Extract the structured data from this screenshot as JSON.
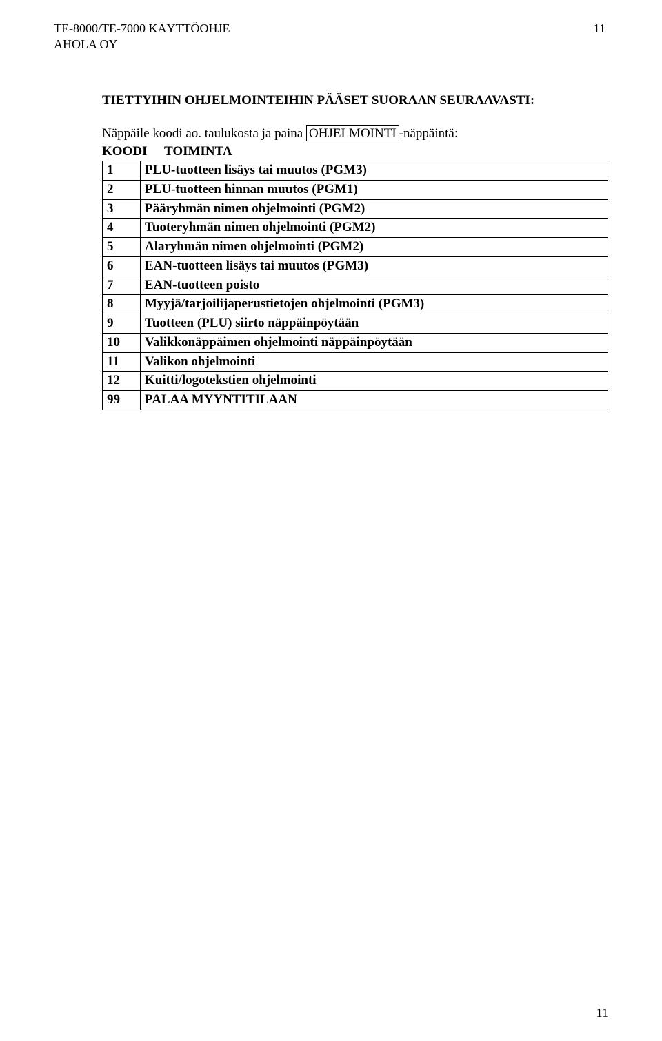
{
  "header": {
    "title_line1": "TE-8000/TE-7000 KÄYTTÖOHJE",
    "title_line2": "AHOLA OY",
    "page_top": "11"
  },
  "section": {
    "heading": "TIETTYIHIN OHJELMOINTEIHIN PÄÄSET SUORAAN SEURAAVASTI:",
    "intro_prefix": "Näppäile koodi ao. taulukosta ja paina ",
    "intro_boxed": "OHJELMOINTI",
    "intro_suffix": "-näppäintä:"
  },
  "table": {
    "head_code": "KOODI",
    "head_action": "TOIMINTA",
    "rows": [
      {
        "code": "1",
        "action": "PLU-tuotteen lisäys tai muutos (PGM3)"
      },
      {
        "code": "2",
        "action": "PLU-tuotteen hinnan muutos (PGM1)"
      },
      {
        "code": "3",
        "action": "Pääryhmän nimen ohjelmointi (PGM2)"
      },
      {
        "code": "4",
        "action": "Tuoteryhmän nimen ohjelmointi (PGM2)"
      },
      {
        "code": "5",
        "action": "Alaryhmän nimen ohjelmointi (PGM2)"
      },
      {
        "code": "6",
        "action": "EAN-tuotteen lisäys tai muutos (PGM3)"
      },
      {
        "code": "7",
        "action": "EAN-tuotteen poisto"
      },
      {
        "code": "8",
        "action": "Myyjä/tarjoilijaperustietojen ohjelmointi (PGM3)"
      },
      {
        "code": "9",
        "action": "Tuotteen (PLU) siirto näppäinpöytään"
      },
      {
        "code": "10",
        "action": "Valikkonäppäimen ohjelmointi näppäinpöytään"
      },
      {
        "code": "11",
        "action": "Valikon ohjelmointi"
      },
      {
        "code": "12",
        "action": "Kuitti/logotekstien ohjelmointi"
      },
      {
        "code": "99",
        "action": "PALAA MYYNTITILAAN"
      }
    ]
  },
  "footer": {
    "page_bottom": "11"
  }
}
